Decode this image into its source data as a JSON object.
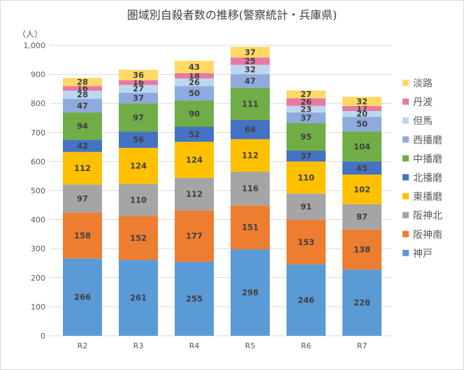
{
  "chart_data": {
    "type": "bar",
    "stacked": true,
    "title": "圏域別自殺者数の推移(警察統計・兵庫県)",
    "xlabel": "",
    "ylabel": "（人）",
    "categories": [
      "R2",
      "R3",
      "R4",
      "R5",
      "R6",
      "R7"
    ],
    "ylim": [
      0,
      1000
    ],
    "ytick_values": [
      0,
      100,
      200,
      300,
      400,
      500,
      600,
      700,
      800,
      900,
      1000
    ],
    "ytick_labels": [
      "0",
      "100",
      "200",
      "300",
      "400",
      "500",
      "600",
      "700",
      "800",
      "900",
      "1,000"
    ],
    "grid": true,
    "legend_position": "right",
    "series": [
      {
        "name": "神戸",
        "color": "#5B9BD5",
        "values": [
          266,
          261,
          255,
          298,
          246,
          228
        ]
      },
      {
        "name": "阪神南",
        "color": "#ED7D31",
        "values": [
          158,
          152,
          177,
          151,
          153,
          138
        ]
      },
      {
        "name": "阪神北",
        "color": "#A5A5A5",
        "values": [
          97,
          110,
          112,
          116,
          91,
          87
        ]
      },
      {
        "name": "東播磨",
        "color": "#FFC000",
        "values": [
          112,
          124,
          124,
          112,
          110,
          102
        ]
      },
      {
        "name": "北播磨",
        "color": "#4472C4",
        "values": [
          42,
          56,
          52,
          66,
          37,
          45
        ]
      },
      {
        "name": "中播磨",
        "color": "#70AD47",
        "values": [
          94,
          97,
          90,
          111,
          95,
          104
        ]
      },
      {
        "name": "西播磨",
        "color": "#8FAADC",
        "values": [
          47,
          37,
          50,
          47,
          37,
          50
        ]
      },
      {
        "name": "但馬",
        "color": "#BDD7EE",
        "values": [
          28,
          27,
          26,
          32,
          23,
          20
        ]
      },
      {
        "name": "丹波",
        "color": "#E879A4",
        "values": [
          16,
          16,
          18,
          25,
          26,
          17
        ]
      },
      {
        "name": "淡路",
        "color": "#FFD966",
        "values": [
          28,
          36,
          43,
          37,
          27,
          32
        ]
      }
    ]
  }
}
